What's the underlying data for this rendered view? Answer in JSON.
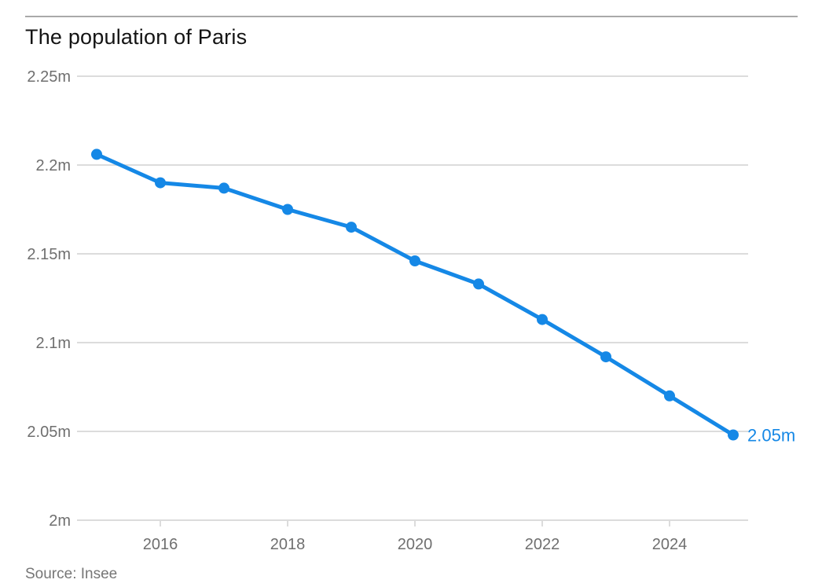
{
  "chart_data": {
    "type": "line",
    "title": "The population of Paris",
    "source": "Source: Insee",
    "unit": "millions",
    "x": [
      2015,
      2016,
      2017,
      2018,
      2019,
      2020,
      2021,
      2022,
      2023,
      2024,
      2025
    ],
    "values": [
      2.206,
      2.19,
      2.187,
      2.175,
      2.165,
      2.146,
      2.133,
      2.113,
      2.092,
      2.07,
      2.048
    ],
    "xlim": [
      2015,
      2025
    ],
    "ylim": [
      2.0,
      2.25
    ],
    "y_ticks": [
      {
        "value": 2.25,
        "label": "2.25m"
      },
      {
        "value": 2.2,
        "label": "2.2m"
      },
      {
        "value": 2.15,
        "label": "2.15m"
      },
      {
        "value": 2.1,
        "label": "2.1m"
      },
      {
        "value": 2.05,
        "label": "2.05m"
      },
      {
        "value": 2.0,
        "label": "2m"
      }
    ],
    "x_ticks": [
      {
        "value": 2016,
        "label": "2016"
      },
      {
        "value": 2018,
        "label": "2018"
      },
      {
        "value": 2020,
        "label": "2020"
      },
      {
        "value": 2022,
        "label": "2022"
      },
      {
        "value": 2024,
        "label": "2024"
      }
    ],
    "end_label": "2.05m",
    "grid": "horizontal",
    "legend": "none",
    "colors": {
      "line": "#1588e6",
      "grid": "#dcdcdc",
      "axis_text": "#6f6f6f",
      "title_text": "#141414",
      "source_text": "#767676",
      "top_rule": "#a9a9a9",
      "background": "#ffffff"
    }
  }
}
